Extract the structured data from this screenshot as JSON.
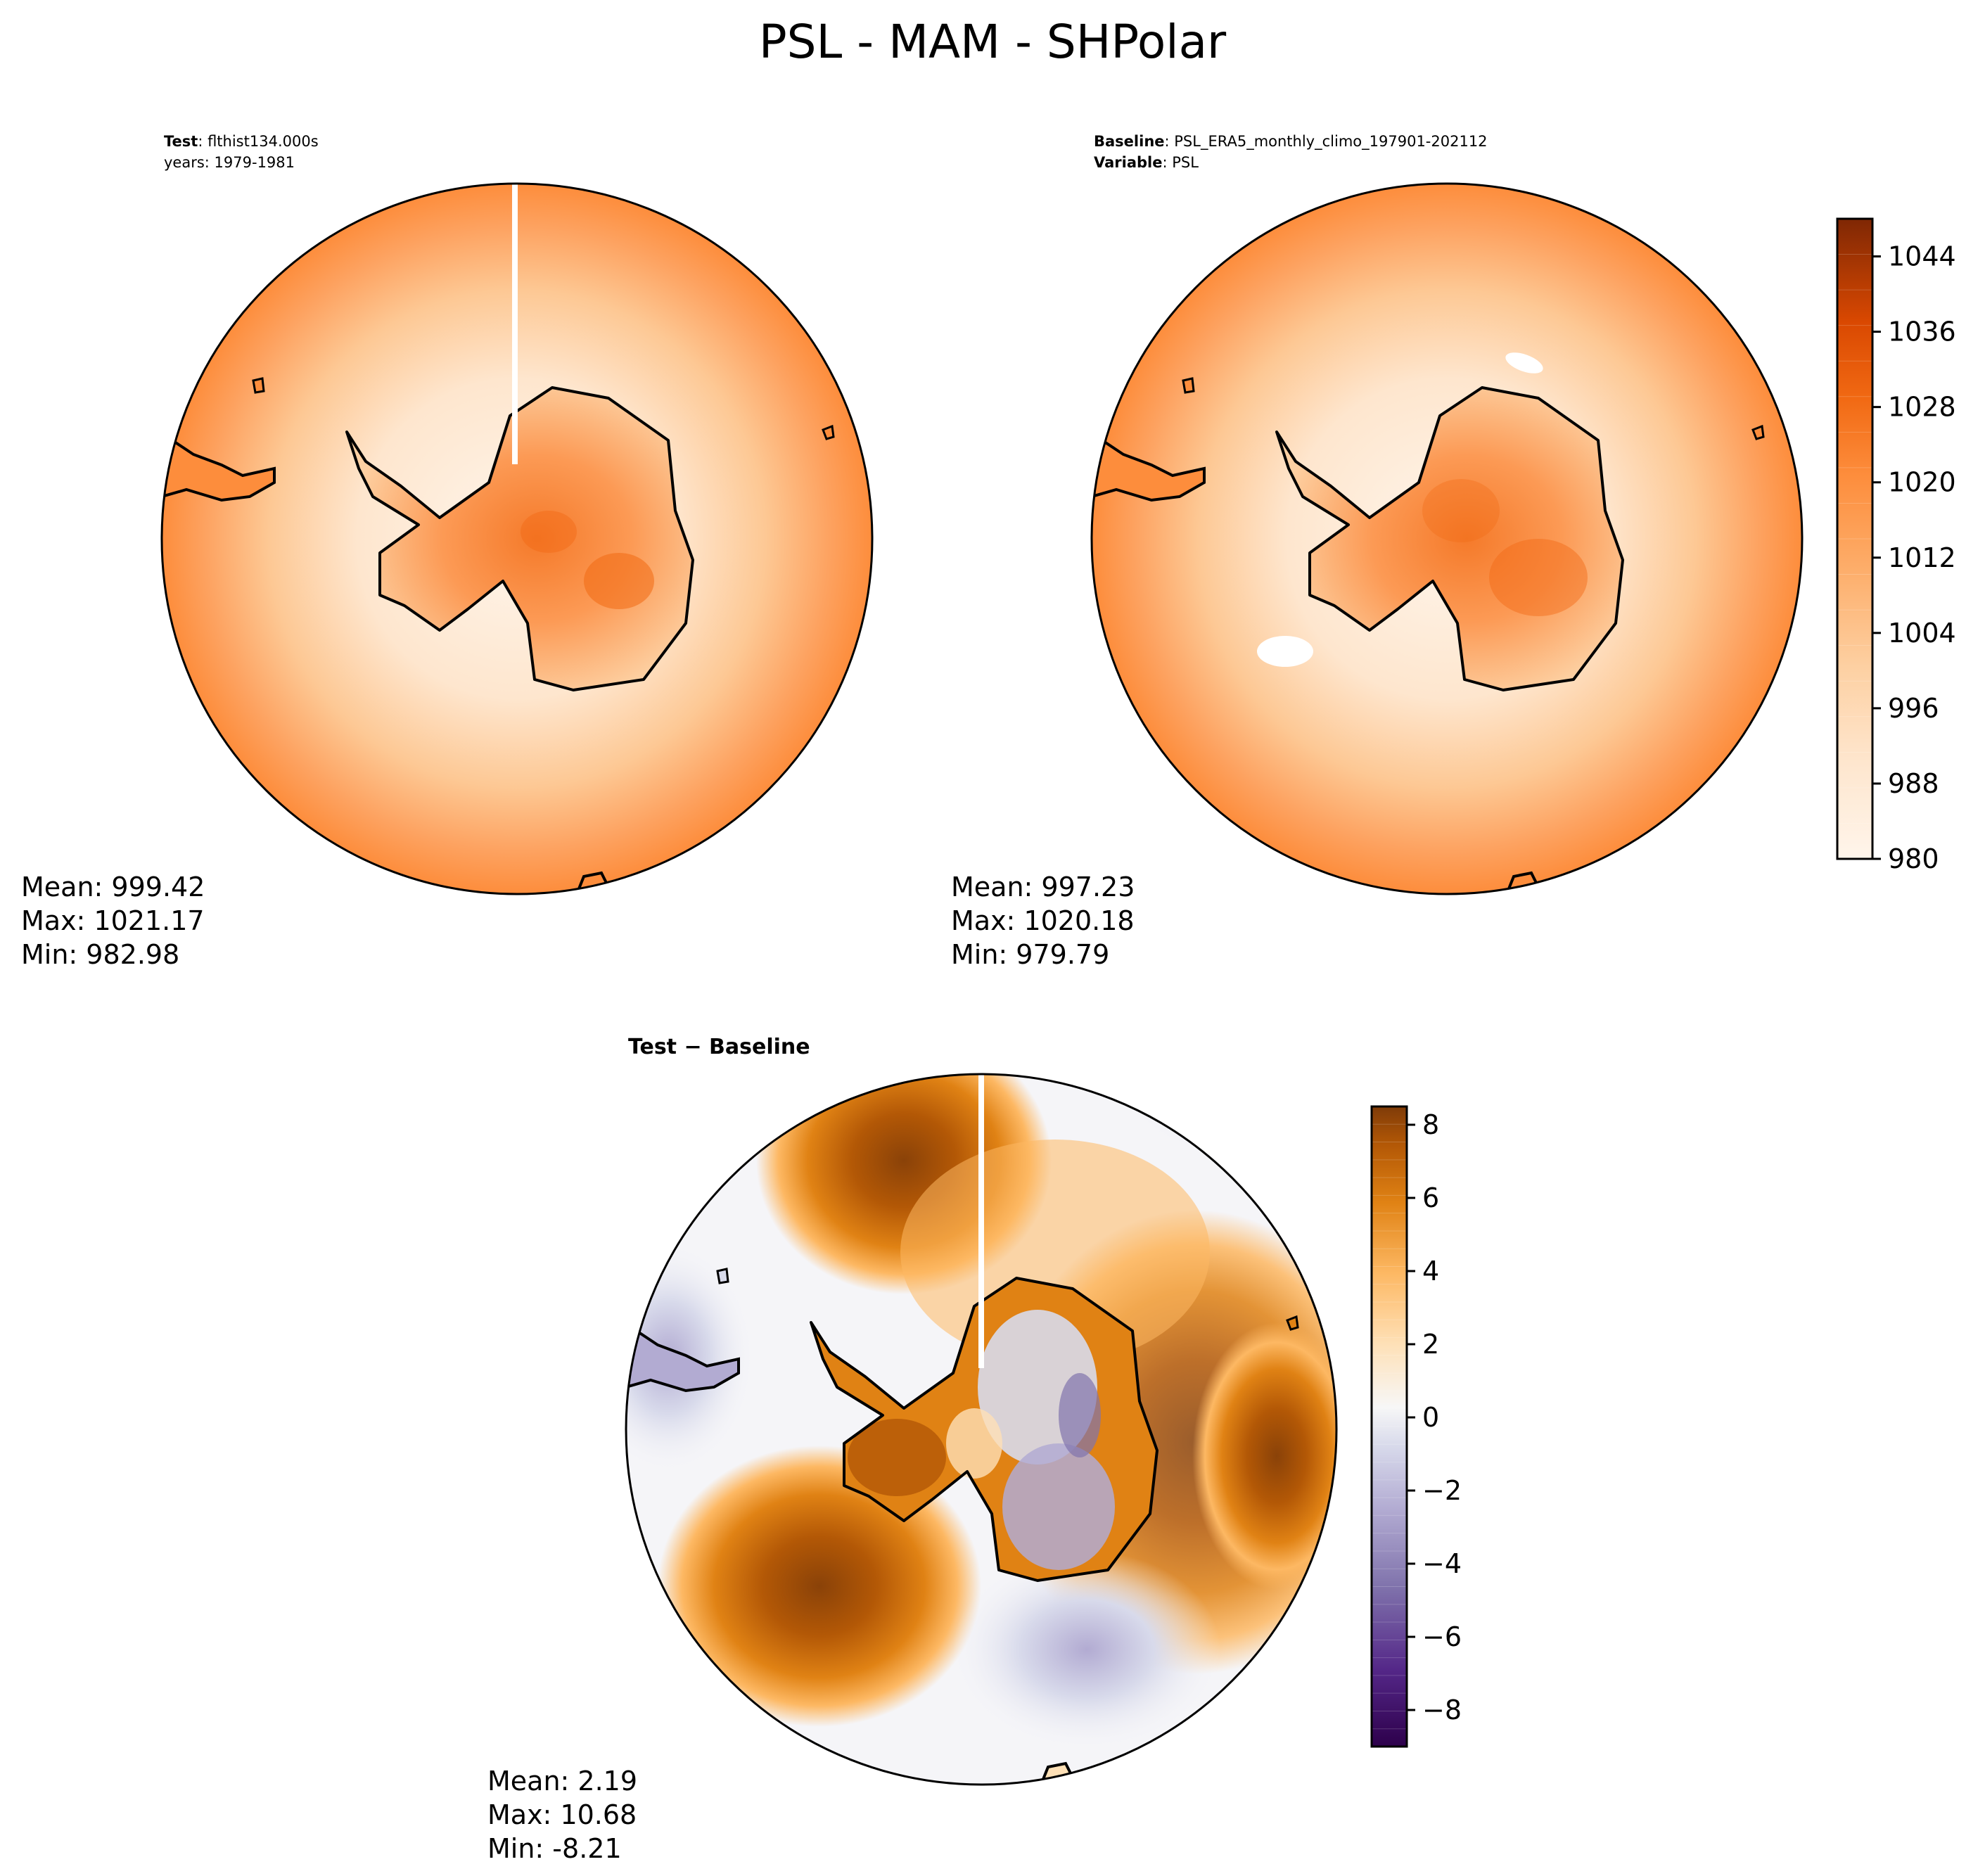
{
  "figure_title": "PSL - MAM - SHPolar",
  "colors": {
    "orange_scale": [
      "#fff5eb",
      "#fee6ce",
      "#fdd0a2",
      "#fdae6b",
      "#fd8d3c",
      "#f16913",
      "#d94801",
      "#a63603",
      "#7f2704"
    ],
    "diff_scale": [
      "#2d004b",
      "#542788",
      "#8073ac",
      "#b2abd2",
      "#d8daeb",
      "#f7f7f7",
      "#fee0b6",
      "#fdb863",
      "#e08214",
      "#b35806",
      "#7f3b08"
    ],
    "coast": "#000000"
  },
  "chart_data": [
    {
      "type": "heatmap",
      "panel": "test",
      "title_lines": [
        {
          "label": "Test",
          "value": ": flthist134.000s"
        },
        {
          "label": "",
          "value": "years: 1979-1981"
        }
      ],
      "projection": "south-polar-stereographic",
      "stats_text": [
        "Mean: 999.42",
        "Max: 1021.17",
        "Min: 982.98"
      ],
      "stats": {
        "mean": 999.42,
        "max": 1021.17,
        "min": 982.98
      }
    },
    {
      "type": "heatmap",
      "panel": "baseline",
      "title_lines": [
        {
          "label": "Baseline",
          "value": ": PSL_ERA5_monthly_climo_197901-202112"
        },
        {
          "label": "Variable",
          "value": ": PSL"
        }
      ],
      "projection": "south-polar-stereographic",
      "stats_text": [
        "Mean: 997.23",
        "Max: 1020.18",
        "Min: 979.79"
      ],
      "stats": {
        "mean": 997.23,
        "max": 1020.18,
        "min": 979.79
      },
      "colorbar": {
        "range": [
          980,
          1048
        ],
        "ticks": [
          980,
          988,
          996,
          1004,
          1012,
          1020,
          1028,
          1036,
          1044
        ],
        "tick_labels": [
          "980",
          "988",
          "996",
          "1004",
          "1012",
          "1020",
          "1028",
          "1036",
          "1044"
        ],
        "levels": 18
      }
    },
    {
      "type": "heatmap",
      "panel": "difference",
      "title_lines": [
        {
          "label": "Test − Baseline",
          "value": ""
        }
      ],
      "projection": "south-polar-stereographic",
      "stats_text": [
        "Mean:  2.19",
        "Max: 10.68",
        "Min: -8.21"
      ],
      "stats": {
        "mean": 2.19,
        "max": 10.68,
        "min": -8.21
      },
      "colorbar": {
        "range": [
          -9,
          8.5
        ],
        "ticks": [
          -8,
          -6,
          -4,
          -2,
          0,
          2,
          4,
          6,
          8
        ],
        "tick_labels": [
          "−8",
          "−6",
          "−4",
          "−2",
          "0",
          "2",
          "4",
          "6",
          "8"
        ],
        "levels": 36
      }
    }
  ]
}
